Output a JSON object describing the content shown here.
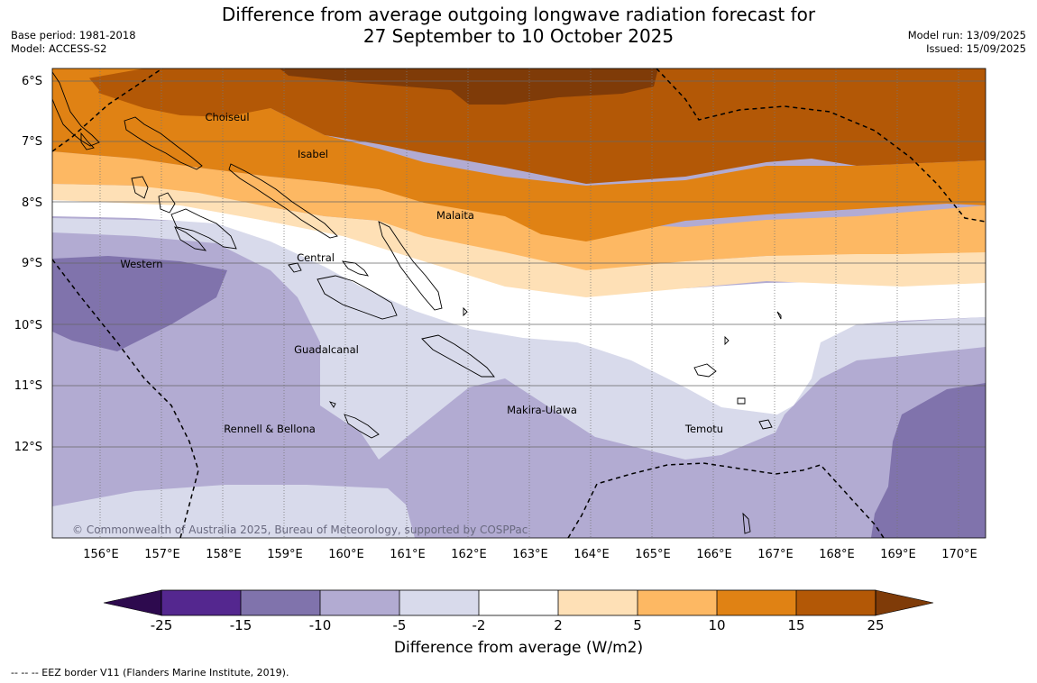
{
  "title": {
    "line1": "Difference from average outgoing longwave radiation forecast for",
    "line2": "27 September to 10 October 2025"
  },
  "meta": {
    "base_period": "Base period: 1981-2018",
    "model": "Model: ACCESS-S2",
    "model_run": "Model run: 13/09/2025",
    "issued": "Issued: 15/09/2025"
  },
  "map": {
    "lat_labels": [
      "6°S",
      "7°S",
      "8°S",
      "9°S",
      "10°S",
      "11°S",
      "12°S"
    ],
    "lon_labels": [
      "156°E",
      "157°E",
      "158°E",
      "159°E",
      "160°E",
      "161°E",
      "162°E",
      "163°E",
      "164°E",
      "165°E",
      "166°E",
      "167°E",
      "168°E",
      "169°E",
      "170°E"
    ],
    "places": {
      "choiseul": "Choiseul",
      "isabel": "Isabel",
      "malaita": "Malaita",
      "western": "Western",
      "central": "Central",
      "guadalcanal": "Guadalcanal",
      "makira": "Makira-Ulawa",
      "temotu": "Temotu",
      "rennell": "Rennell & Bellona"
    },
    "copyright": "© Commonwealth of Australia 2025, Bureau of Meteorology, supported by COSPPac"
  },
  "colorbar": {
    "ticks": [
      "-25",
      "-15",
      "-10",
      "-5",
      "-2",
      "2",
      "5",
      "10",
      "15",
      "25"
    ],
    "label": "Difference from average (W/m2)",
    "colors": {
      "below_min": "#2d0a4e",
      "m25_m15": "#54278f",
      "m15_m10": "#8073ac",
      "m10_m5": "#b2abd2",
      "m5_m2": "#d8daeb",
      "m2_p2": "#ffffff",
      "p2_p5": "#fee0b6",
      "p5_p10": "#fdb863",
      "p10_p15": "#e08214",
      "p15_p25": "#b35806",
      "above_max": "#7f3b08"
    }
  },
  "footnote": "--  --  -- EEZ border V11 (Flanders Marine Institute, 2019)."
}
